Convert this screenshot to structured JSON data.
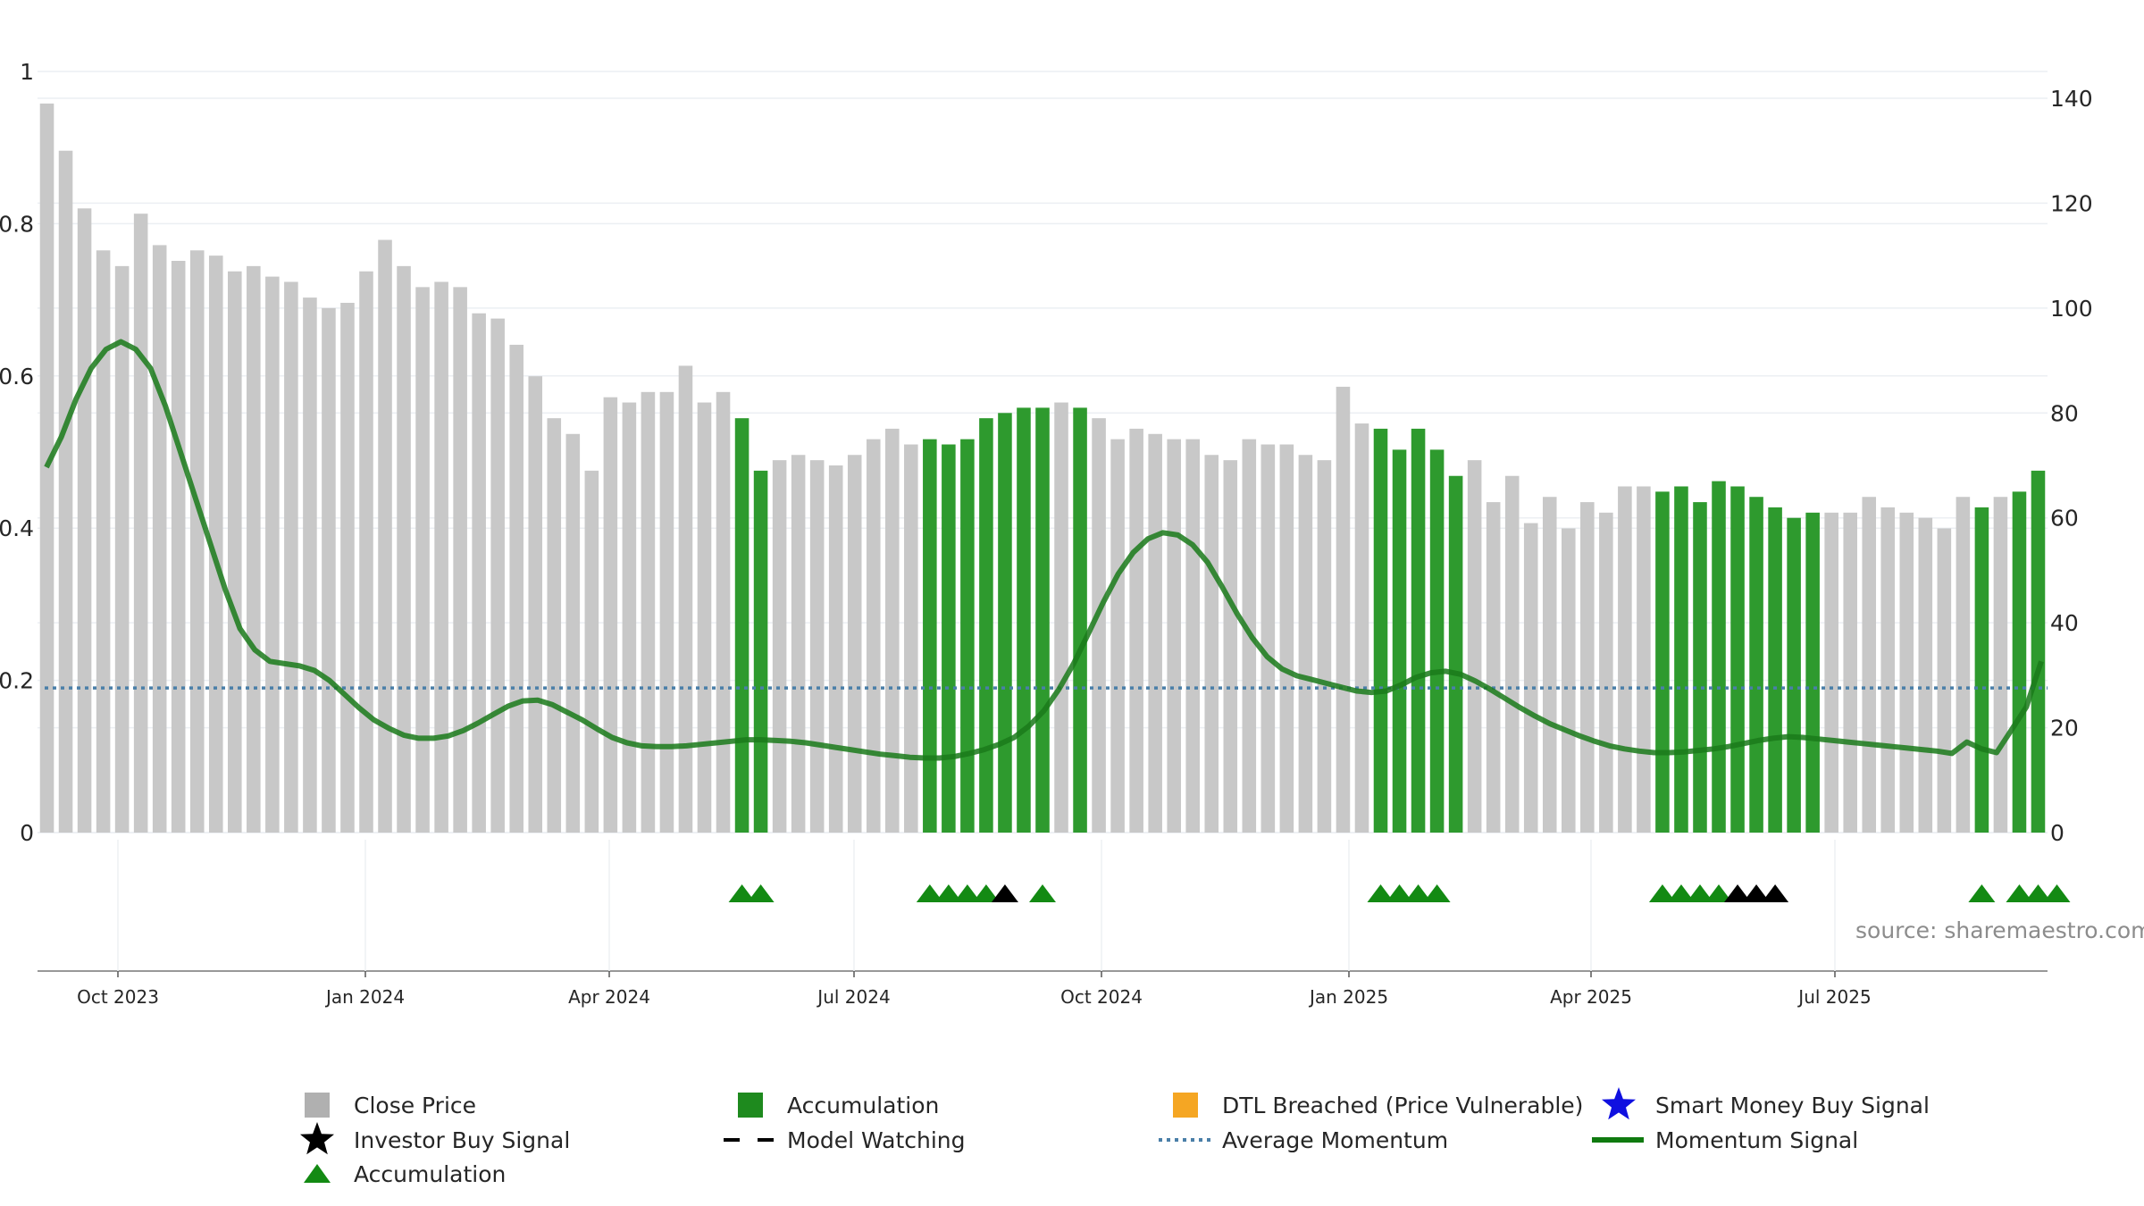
{
  "source_text": "source: sharemaestro.com",
  "colors": {
    "bar_gray": "#c8c8c8",
    "bar_green": "#2e9a2e",
    "accum_triangle": "#138a13",
    "investor": "#000000",
    "momentum_line": "#1a7a1a",
    "avg_line": "#4a7fa8",
    "dtl": "#f5a623",
    "smart_money": "#1010e0"
  },
  "chart_data": {
    "type": "bar",
    "left_axis": {
      "ticks": [
        "0",
        "0.2",
        "0.4",
        "0.6",
        "0.8",
        "1"
      ],
      "ylim": [
        0,
        1
      ]
    },
    "right_axis": {
      "ticks": [
        "0",
        "20",
        "40",
        "60",
        "80",
        "100",
        "120",
        "140"
      ],
      "ylim": [
        0,
        140
      ]
    },
    "x_date_ticks": [
      "Oct 2023",
      "Jan 2024",
      "Apr 2024",
      "Jul 2024",
      "Oct 2024",
      "Jan 2025",
      "Apr 2025",
      "Jul 2025"
    ],
    "series": [
      {
        "name": "Close Price",
        "axis": "right",
        "values": [
          139,
          130,
          119,
          111,
          108,
          118,
          112,
          109,
          111,
          110,
          107,
          108,
          106,
          105,
          102,
          100,
          101,
          107,
          113,
          108,
          104,
          105,
          104,
          99,
          98,
          93,
          87,
          79,
          76,
          69,
          83,
          82,
          84,
          84,
          89,
          82,
          84,
          79,
          69,
          71,
          72,
          71,
          70,
          72,
          75,
          77,
          74,
          75,
          74,
          75,
          79,
          80,
          81,
          81,
          82,
          81,
          79,
          75,
          77,
          76,
          75,
          75,
          72,
          71,
          75,
          74,
          74,
          72,
          71,
          85,
          78,
          77,
          73,
          77,
          73,
          68,
          71,
          63,
          68,
          59,
          64,
          58,
          63,
          61,
          66,
          66,
          65,
          66,
          63,
          67,
          66,
          64,
          62,
          60,
          61,
          61,
          61,
          64,
          62,
          61,
          60,
          58,
          64,
          62,
          64,
          65,
          69
        ],
        "accumulation_indices": [
          37,
          38,
          47,
          48,
          49,
          50,
          51,
          52,
          53,
          55,
          71,
          72,
          73,
          74,
          75,
          86,
          87,
          88,
          89,
          90,
          91,
          92,
          93,
          94,
          103,
          105,
          106,
          107
        ]
      },
      {
        "name": "Momentum Signal",
        "axis": "left",
        "values": [
          0.48,
          0.52,
          0.57,
          0.61,
          0.635,
          0.645,
          0.635,
          0.61,
          0.56,
          0.5,
          0.44,
          0.38,
          0.32,
          0.268,
          0.24,
          0.225,
          0.222,
          0.219,
          0.213,
          0.2,
          0.182,
          0.164,
          0.148,
          0.137,
          0.128,
          0.124,
          0.124,
          0.127,
          0.134,
          0.144,
          0.155,
          0.166,
          0.173,
          0.174,
          0.168,
          0.158,
          0.148,
          0.136,
          0.125,
          0.118,
          0.114,
          0.113,
          0.113,
          0.114,
          0.116,
          0.118,
          0.12,
          0.122,
          0.122,
          0.121,
          0.12,
          0.118,
          0.115,
          0.112,
          0.109,
          0.106,
          0.103,
          0.101,
          0.099,
          0.098,
          0.098,
          0.1,
          0.104,
          0.109,
          0.116,
          0.125,
          0.14,
          0.16,
          0.188,
          0.222,
          0.262,
          0.303,
          0.34,
          0.368,
          0.386,
          0.394,
          0.391,
          0.378,
          0.355,
          0.322,
          0.287,
          0.256,
          0.231,
          0.215,
          0.206,
          0.201,
          0.196,
          0.191,
          0.186,
          0.184,
          0.186,
          0.194,
          0.204,
          0.21,
          0.212,
          0.208,
          0.199,
          0.188,
          0.176,
          0.164,
          0.153,
          0.143,
          0.135,
          0.127,
          0.12,
          0.114,
          0.11,
          0.107,
          0.105,
          0.105,
          0.106,
          0.108,
          0.11,
          0.113,
          0.117,
          0.121,
          0.124,
          0.126,
          0.125,
          0.123,
          0.121,
          0.119,
          0.117,
          0.115,
          0.113,
          0.111,
          0.109,
          0.107,
          0.104,
          0.119,
          0.11,
          0.105,
          0.135,
          0.165,
          0.225
        ]
      },
      {
        "name": "Average Momentum",
        "axis": "left",
        "value": 0.19
      }
    ],
    "accumulation_triangles": [
      37,
      38,
      47,
      48,
      49,
      50,
      53,
      71,
      72,
      73,
      74,
      86,
      87,
      88,
      89,
      103,
      105,
      106,
      107
    ],
    "investor_triangles": [
      51,
      90,
      91,
      92
    ],
    "legend": [
      {
        "label": "Close Price",
        "symbol": "square-gray"
      },
      {
        "label": "Accumulation",
        "symbol": "square-green"
      },
      {
        "label": "DTL Breached (Price Vulnerable)",
        "symbol": "square-orange"
      },
      {
        "label": "Smart Money Buy Signal",
        "symbol": "star-blue"
      },
      {
        "label": "Investor Buy Signal",
        "symbol": "star-black"
      },
      {
        "label": "Model Watching",
        "symbol": "dash-black"
      },
      {
        "label": "Average Momentum",
        "symbol": "dot-blue"
      },
      {
        "label": "Momentum Signal",
        "symbol": "line-green"
      },
      {
        "label": "Accumulation",
        "symbol": "triangle-green"
      }
    ]
  }
}
